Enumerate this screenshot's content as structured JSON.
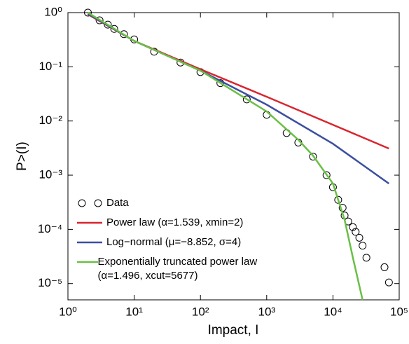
{
  "chart_data": {
    "type": "line",
    "xlabel": "Impact, I",
    "ylabel": "P>(I)",
    "xscale": "log",
    "yscale": "log",
    "xlim": [
      1,
      100000
    ],
    "ylim": [
      5e-06,
      1
    ],
    "xticks": [
      {
        "value": 1,
        "label": "10⁰"
      },
      {
        "value": 10,
        "label": "10¹"
      },
      {
        "value": 100,
        "label": "10²"
      },
      {
        "value": 1000,
        "label": "10³"
      },
      {
        "value": 10000,
        "label": "10⁴"
      },
      {
        "value": 100000,
        "label": "10⁵"
      }
    ],
    "yticks": [
      {
        "value": 1e-05,
        "label": "10⁻⁵"
      },
      {
        "value": 0.0001,
        "label": "10⁻⁴"
      },
      {
        "value": 0.001,
        "label": "10⁻³"
      },
      {
        "value": 0.01,
        "label": "10⁻²"
      },
      {
        "value": 0.1,
        "label": "10⁻¹"
      },
      {
        "value": 1,
        "label": "10⁰"
      }
    ],
    "legend": "lower left",
    "series": [
      {
        "name": "Data",
        "type": "scatter",
        "color": "#000000",
        "x": [
          2,
          3,
          4,
          5,
          7,
          10,
          20,
          50,
          100,
          200,
          500,
          1000,
          2000,
          3000,
          5000,
          8000,
          10000,
          12000,
          14000,
          15000,
          17000,
          20000,
          22000,
          25000,
          28000,
          32000,
          60000,
          70000
        ],
        "values": [
          1,
          0.72,
          0.6,
          0.5,
          0.4,
          0.32,
          0.19,
          0.12,
          0.08,
          0.05,
          0.025,
          0.013,
          0.006,
          0.004,
          0.0022,
          0.001,
          0.0006,
          0.00035,
          0.00025,
          0.00018,
          0.00014,
          0.00011,
          9e-05,
          7e-05,
          5e-05,
          3e-05,
          2e-05,
          1.05e-05
        ]
      },
      {
        "name": "Power law (α=1.539, xmin=2)",
        "type": "line",
        "color": "#d9252e",
        "x": [
          2,
          10,
          100,
          1000,
          10000,
          70000
        ],
        "values": [
          0.93,
          0.3,
          0.09,
          0.028,
          0.0085,
          0.0031
        ]
      },
      {
        "name": "Log−normal (μ=−8.852, σ=4)",
        "type": "line",
        "color": "#3a4fa0",
        "x": [
          2,
          10,
          100,
          1000,
          10000,
          70000
        ],
        "values": [
          0.95,
          0.3,
          0.085,
          0.02,
          0.0038,
          0.0007
        ]
      },
      {
        "name": "Exponentially truncated power law (α=1.496, xcut=5677)",
        "type": "line",
        "color": "#6abf45",
        "x": [
          2,
          10,
          100,
          1000,
          3000,
          5000,
          10000,
          15000,
          20000,
          28000
        ],
        "values": [
          1,
          0.3,
          0.085,
          0.015,
          0.0045,
          0.0023,
          0.0007,
          0.00015,
          3e-05,
          5e-06
        ]
      }
    ]
  }
}
